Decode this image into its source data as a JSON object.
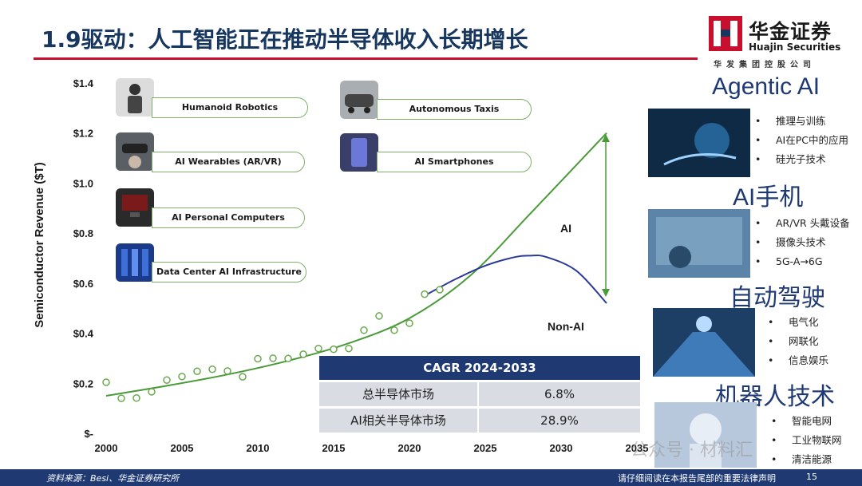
{
  "header": {
    "title": "1.9驱动：人工智能正在推动半导体收入长期增长",
    "logo_cn": "华金证券",
    "logo_en": "Huajin Securities",
    "logo_sub": "华发集团控股公司"
  },
  "chart_data": {
    "type": "scatter",
    "ylabel": "Semiconductor Revenue ($T)",
    "xlabel": "",
    "xlim": [
      2000,
      2035
    ],
    "ylim": [
      0,
      1.4
    ],
    "x_ticks": [
      "2000",
      "2005",
      "2010",
      "2015",
      "2020",
      "2025",
      "2030",
      "2035"
    ],
    "y_ticks": [
      "$-",
      "$0.2",
      "$0.4",
      "$0.6",
      "$0.8",
      "$1.0",
      "$1.2",
      "$1.4"
    ],
    "series": [
      {
        "x": [
          2000,
          2001,
          2002,
          2003,
          2004,
          2005,
          2006,
          2007,
          2008,
          2009,
          2010,
          2011,
          2012,
          2013,
          2014,
          2015,
          2016,
          2017,
          2018,
          2019,
          2020,
          2021,
          2022
        ],
        "y": [
          0.204,
          0.14,
          0.141,
          0.166,
          0.213,
          0.227,
          0.248,
          0.256,
          0.249,
          0.226,
          0.298,
          0.3,
          0.299,
          0.316,
          0.339,
          0.336,
          0.339,
          0.412,
          0.469,
          0.412,
          0.44,
          0.556,
          0.574
        ]
      },
      {
        "name": "AI",
        "x": [
          2000,
          2004,
          2008,
          2012,
          2016,
          2020,
          2024,
          2028,
          2033
        ],
        "y": [
          0.15,
          0.19,
          0.235,
          0.29,
          0.36,
          0.46,
          0.63,
          0.88,
          1.2
        ]
      },
      {
        "name": "Non-AI",
        "x": [
          2021,
          2023,
          2025,
          2027,
          2028,
          2029,
          2031,
          2033
        ],
        "y": [
          0.55,
          0.615,
          0.67,
          0.705,
          0.71,
          0.705,
          0.65,
          0.52
        ]
      }
    ],
    "annotations": [
      "AI",
      "Non-AI"
    ],
    "table": {
      "header": "CAGR 2024-2033",
      "rows": [
        {
          "label": "总半导体市场",
          "value": "6.8%"
        },
        {
          "label": "AI相关半导体市场",
          "value": "28.9%"
        }
      ]
    },
    "applications": [
      "Humanoid Robotics",
      "AI Wearables (AR/VR)",
      "AI Personal Computers",
      "Data Center AI Infrastructure",
      "Autonomous Taxis",
      "AI Smartphones"
    ],
    "colors": {
      "trend": "#4a9a3a",
      "nonai": "#2b3a9a",
      "points": "#6aa84f",
      "arrow": "#4a9a3a"
    }
  },
  "side": [
    {
      "heading": "Agentic AI",
      "items": [
        "推理与训练",
        "AI在PC中的应用",
        "硅光子技术"
      ]
    },
    {
      "heading": "AI手机",
      "items": [
        "AR/VR 头戴设备",
        "摄像头技术",
        "5G-A→6G"
      ]
    },
    {
      "heading": "自动驾驶",
      "items": [
        "电气化",
        "网联化",
        "信息娱乐"
      ]
    },
    {
      "heading": "机器人技术",
      "items": [
        "智能电网",
        "工业物联网",
        "清洁能源"
      ]
    }
  ],
  "footer": {
    "source": "资料来源：Besi、华金证券研究所",
    "disclaimer": "请仔细阅读在本报告尾部的重要法律声明",
    "page": "15"
  },
  "watermark": "公众号 · 材料汇"
}
